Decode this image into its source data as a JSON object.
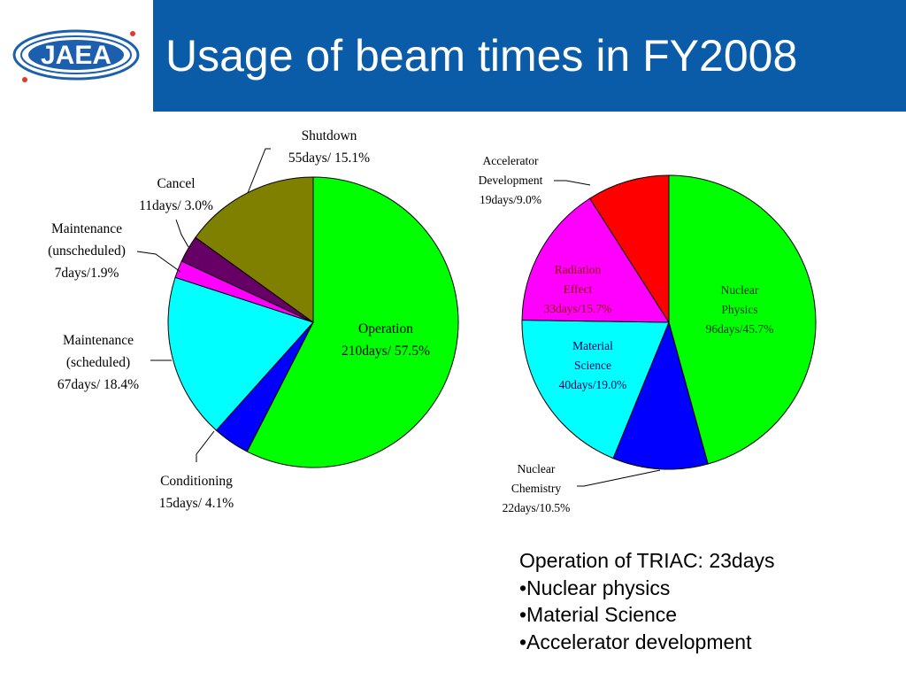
{
  "header": {
    "title": "Usage of beam times in FY2008",
    "logo_text": "JAEA",
    "title_bar_color": "#0a5ba8"
  },
  "chart_data": [
    {
      "type": "pie",
      "title": "",
      "slices": [
        {
          "name": "Operation",
          "days_label": "210days/ 57.5%",
          "days": 210,
          "percent": 57.5,
          "color": "#00ff00"
        },
        {
          "name": "Conditioning",
          "days_label": "15days/ 4.1%",
          "days": 15,
          "percent": 4.1,
          "color": "#0000ff"
        },
        {
          "name": "Maintenance (scheduled)",
          "label_lines": [
            "Maintenance",
            "(scheduled)"
          ],
          "days_label": "67days/ 18.4%",
          "days": 67,
          "percent": 18.4,
          "color": "#00ffff"
        },
        {
          "name": "Maintenance (unscheduled)",
          "label_lines": [
            "Maintenance",
            "(unscheduled)"
          ],
          "days_label": "7days/1.9%",
          "days": 7,
          "percent": 1.9,
          "color": "#ff00ff"
        },
        {
          "name": "Cancel",
          "days_label": "11days/ 3.0%",
          "days": 11,
          "percent": 3.0,
          "color": "#660066"
        },
        {
          "name": "Shutdown",
          "days_label": "55days/ 15.1%",
          "days": 55,
          "percent": 15.1,
          "color": "#808000"
        }
      ]
    },
    {
      "type": "pie",
      "title": "",
      "slices": [
        {
          "name": "Nuclear Physics",
          "label_lines": [
            "Nuclear",
            "Physics"
          ],
          "days_label": "96days/45.7%",
          "days": 96,
          "percent": 45.7,
          "color": "#00ff00"
        },
        {
          "name": "Nuclear Chemistry",
          "label_lines": [
            "Nuclear",
            "Chemistry"
          ],
          "days_label": "22days/10.5%",
          "days": 22,
          "percent": 10.5,
          "color": "#0000ff"
        },
        {
          "name": "Material Science",
          "label_lines": [
            "Material",
            "Science"
          ],
          "days_label": "40days/19.0%",
          "days": 40,
          "percent": 19.0,
          "color": "#00ffff"
        },
        {
          "name": "Radiation Effect",
          "label_lines": [
            "Radiation",
            "Effect"
          ],
          "days_label": "33days/15.7%",
          "days": 33,
          "percent": 15.7,
          "color": "#ff00ff",
          "label_color": "#8b0000"
        },
        {
          "name": "Accelerator Development",
          "label_lines": [
            "Accelerator",
            "Development"
          ],
          "days_label": "19days/9.0%",
          "days": 19,
          "percent": 9.0,
          "color": "#ff0000"
        }
      ]
    }
  ],
  "notes": {
    "heading": "Operation of TRIAC: 23days",
    "items": [
      "•Nuclear physics",
      "•Material Science",
      "•Accelerator development"
    ]
  }
}
